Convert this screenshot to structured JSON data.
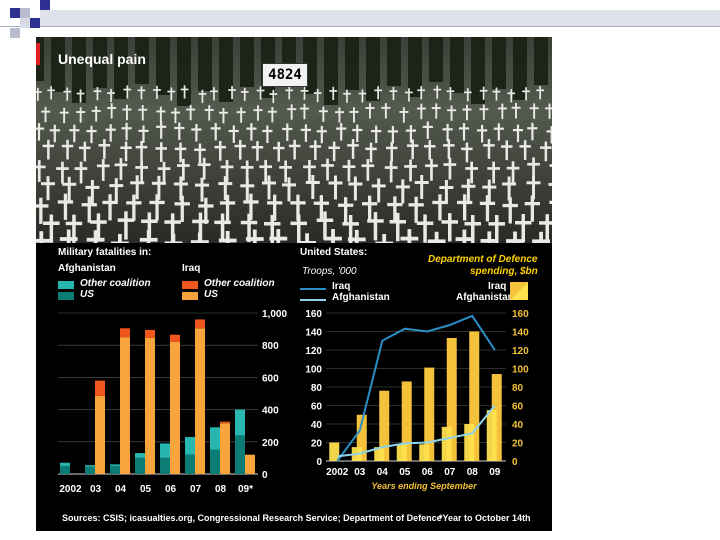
{
  "title": "Unequal pain",
  "cross_count": "4824",
  "left_panel": {
    "heading": "Military fatalities in:",
    "afghanistan_label": "Afghanistan",
    "iraq_label": "Iraq",
    "legend": {
      "afg_other": "Other coalition",
      "afg_us": "US",
      "iraq_other": "Other coalition",
      "iraq_us": "US"
    }
  },
  "right_panel": {
    "heading": "United States:",
    "troops_label": "Troops, '000",
    "spending_label_1": "Department of Defence",
    "spending_label_2": "spending, $bn",
    "legend_iraq_line": "Iraq",
    "legend_afg_line": "Afghanistan",
    "legend_iraq_bar": "Iraq",
    "legend_afg_bar": "Afghanistan"
  },
  "colors": {
    "afg_other": "#27b6b0",
    "afg_us": "#0c7d74",
    "iraq_other": "#f0571c",
    "iraq_us": "#f6a43b",
    "iraq_line": "#2a8fc7",
    "afg_line": "#8fd3ea",
    "iraq_bar": "#f3c13a",
    "afg_bar": "#ffe14d"
  },
  "chart_data": [
    {
      "type": "bar",
      "categories": [
        "2002",
        "03",
        "04",
        "05",
        "06",
        "07",
        "08",
        "09*"
      ],
      "series": [
        {
          "name": "Afghanistan US",
          "values": [
            50,
            45,
            50,
            100,
            100,
            120,
            150,
            240
          ]
        },
        {
          "name": "Afghanistan Other coalition",
          "values": [
            20,
            10,
            10,
            30,
            90,
            110,
            140,
            160
          ]
        },
        {
          "name": "Iraq US",
          "values": [
            0,
            485,
            850,
            845,
            820,
            905,
            315,
            120
          ]
        },
        {
          "name": "Iraq Other coalition",
          "values": [
            0,
            95,
            55,
            50,
            45,
            55,
            10,
            0
          ]
        }
      ],
      "yticks": [
        "0",
        "200",
        "400",
        "600",
        "800",
        "1,000"
      ],
      "ylim": [
        0,
        1000
      ]
    },
    {
      "type": "bar",
      "categories": [
        "2002",
        "03",
        "04",
        "05",
        "06",
        "07",
        "08",
        "09"
      ],
      "xlabel": "Years ending September",
      "series": [
        {
          "name": "Iraq",
          "values": [
            0,
            50,
            76,
            86,
            101,
            133,
            140,
            94
          ]
        },
        {
          "name": "Afghanistan",
          "values": [
            20,
            15,
            15,
            18,
            18,
            37,
            40,
            55
          ]
        },
        {
          "name": "Iraq",
          "values": [
            0,
            33,
            130,
            143,
            140,
            147,
            157,
            120
          ]
        },
        {
          "name": "Afghanistan",
          "values": [
            5,
            8,
            15,
            19,
            20,
            25,
            30,
            60
          ]
        }
      ],
      "yticks_left": [
        "0",
        "20",
        "40",
        "60",
        "80",
        "100",
        "120",
        "140",
        "160"
      ],
      "yticks_right": [
        "0",
        "20",
        "40",
        "60",
        "80",
        "100",
        "120",
        "140",
        "160"
      ],
      "ylim": [
        0,
        160
      ]
    }
  ],
  "source": "Sources: CSIS; icasualties.org, Congressional Research Service; Department of Defence",
  "footnote": "*Year to October 14th"
}
